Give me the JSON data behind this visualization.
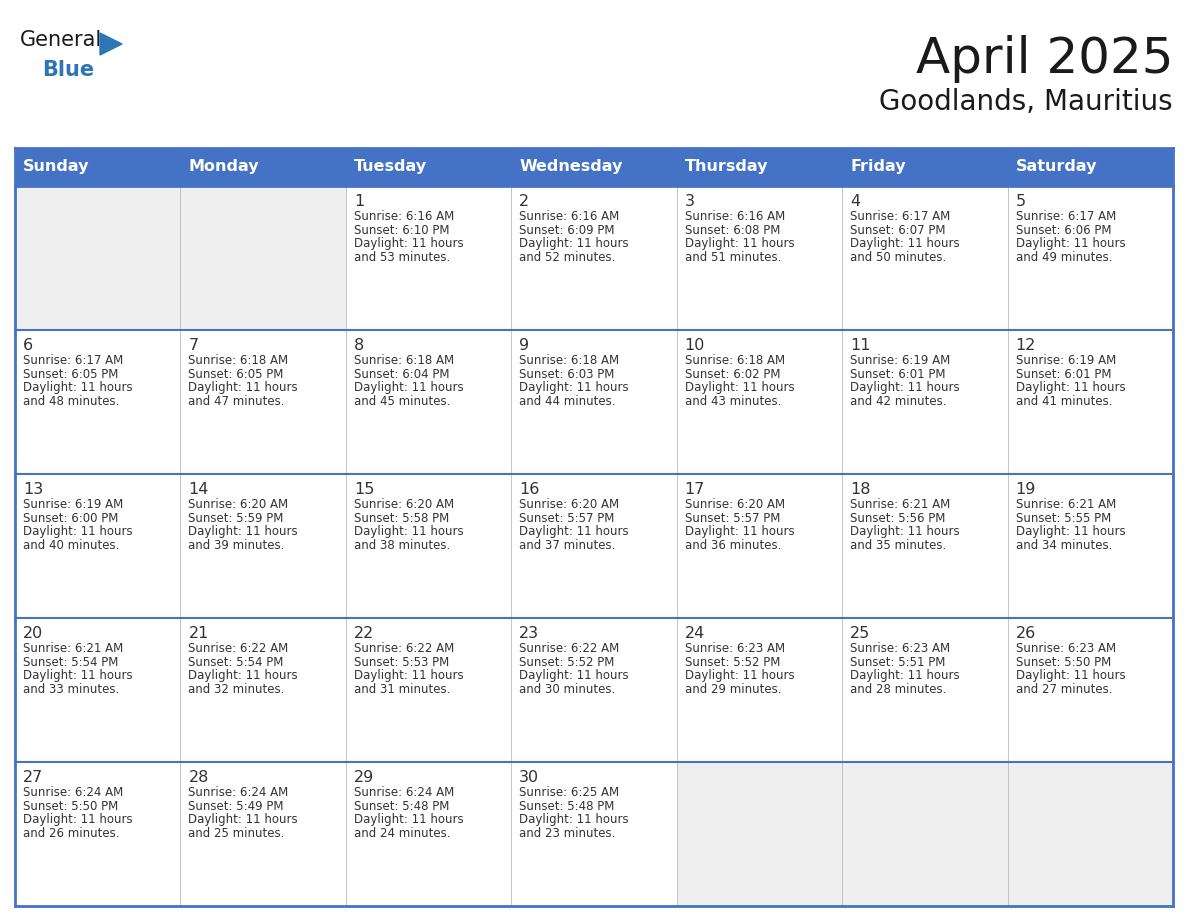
{
  "title": "April 2025",
  "subtitle": "Goodlands, Mauritius",
  "days_of_week": [
    "Sunday",
    "Monday",
    "Tuesday",
    "Wednesday",
    "Thursday",
    "Friday",
    "Saturday"
  ],
  "header_bg": "#4472C4",
  "header_text": "#FFFFFF",
  "cell_bg_light": "#EFEFEF",
  "cell_bg_white": "#FFFFFF",
  "border_color": "#4472C4",
  "row_border_color": "#4472C4",
  "text_color": "#333333",
  "title_color": "#1a1a1a",
  "logo_general_color": "#1a1a1a",
  "logo_blue_color": "#2E75B6",
  "logo_triangle_color": "#2E75B6",
  "calendar_data": [
    [
      {
        "day": "",
        "sunrise": "",
        "sunset": "",
        "daylight_a": "",
        "daylight_b": ""
      },
      {
        "day": "",
        "sunrise": "",
        "sunset": "",
        "daylight_a": "",
        "daylight_b": ""
      },
      {
        "day": "1",
        "sunrise": "Sunrise: 6:16 AM",
        "sunset": "Sunset: 6:10 PM",
        "daylight_a": "Daylight: 11 hours",
        "daylight_b": "and 53 minutes."
      },
      {
        "day": "2",
        "sunrise": "Sunrise: 6:16 AM",
        "sunset": "Sunset: 6:09 PM",
        "daylight_a": "Daylight: 11 hours",
        "daylight_b": "and 52 minutes."
      },
      {
        "day": "3",
        "sunrise": "Sunrise: 6:16 AM",
        "sunset": "Sunset: 6:08 PM",
        "daylight_a": "Daylight: 11 hours",
        "daylight_b": "and 51 minutes."
      },
      {
        "day": "4",
        "sunrise": "Sunrise: 6:17 AM",
        "sunset": "Sunset: 6:07 PM",
        "daylight_a": "Daylight: 11 hours",
        "daylight_b": "and 50 minutes."
      },
      {
        "day": "5",
        "sunrise": "Sunrise: 6:17 AM",
        "sunset": "Sunset: 6:06 PM",
        "daylight_a": "Daylight: 11 hours",
        "daylight_b": "and 49 minutes."
      }
    ],
    [
      {
        "day": "6",
        "sunrise": "Sunrise: 6:17 AM",
        "sunset": "Sunset: 6:05 PM",
        "daylight_a": "Daylight: 11 hours",
        "daylight_b": "and 48 minutes."
      },
      {
        "day": "7",
        "sunrise": "Sunrise: 6:18 AM",
        "sunset": "Sunset: 6:05 PM",
        "daylight_a": "Daylight: 11 hours",
        "daylight_b": "and 47 minutes."
      },
      {
        "day": "8",
        "sunrise": "Sunrise: 6:18 AM",
        "sunset": "Sunset: 6:04 PM",
        "daylight_a": "Daylight: 11 hours",
        "daylight_b": "and 45 minutes."
      },
      {
        "day": "9",
        "sunrise": "Sunrise: 6:18 AM",
        "sunset": "Sunset: 6:03 PM",
        "daylight_a": "Daylight: 11 hours",
        "daylight_b": "and 44 minutes."
      },
      {
        "day": "10",
        "sunrise": "Sunrise: 6:18 AM",
        "sunset": "Sunset: 6:02 PM",
        "daylight_a": "Daylight: 11 hours",
        "daylight_b": "and 43 minutes."
      },
      {
        "day": "11",
        "sunrise": "Sunrise: 6:19 AM",
        "sunset": "Sunset: 6:01 PM",
        "daylight_a": "Daylight: 11 hours",
        "daylight_b": "and 42 minutes."
      },
      {
        "day": "12",
        "sunrise": "Sunrise: 6:19 AM",
        "sunset": "Sunset: 6:01 PM",
        "daylight_a": "Daylight: 11 hours",
        "daylight_b": "and 41 minutes."
      }
    ],
    [
      {
        "day": "13",
        "sunrise": "Sunrise: 6:19 AM",
        "sunset": "Sunset: 6:00 PM",
        "daylight_a": "Daylight: 11 hours",
        "daylight_b": "and 40 minutes."
      },
      {
        "day": "14",
        "sunrise": "Sunrise: 6:20 AM",
        "sunset": "Sunset: 5:59 PM",
        "daylight_a": "Daylight: 11 hours",
        "daylight_b": "and 39 minutes."
      },
      {
        "day": "15",
        "sunrise": "Sunrise: 6:20 AM",
        "sunset": "Sunset: 5:58 PM",
        "daylight_a": "Daylight: 11 hours",
        "daylight_b": "and 38 minutes."
      },
      {
        "day": "16",
        "sunrise": "Sunrise: 6:20 AM",
        "sunset": "Sunset: 5:57 PM",
        "daylight_a": "Daylight: 11 hours",
        "daylight_b": "and 37 minutes."
      },
      {
        "day": "17",
        "sunrise": "Sunrise: 6:20 AM",
        "sunset": "Sunset: 5:57 PM",
        "daylight_a": "Daylight: 11 hours",
        "daylight_b": "and 36 minutes."
      },
      {
        "day": "18",
        "sunrise": "Sunrise: 6:21 AM",
        "sunset": "Sunset: 5:56 PM",
        "daylight_a": "Daylight: 11 hours",
        "daylight_b": "and 35 minutes."
      },
      {
        "day": "19",
        "sunrise": "Sunrise: 6:21 AM",
        "sunset": "Sunset: 5:55 PM",
        "daylight_a": "Daylight: 11 hours",
        "daylight_b": "and 34 minutes."
      }
    ],
    [
      {
        "day": "20",
        "sunrise": "Sunrise: 6:21 AM",
        "sunset": "Sunset: 5:54 PM",
        "daylight_a": "Daylight: 11 hours",
        "daylight_b": "and 33 minutes."
      },
      {
        "day": "21",
        "sunrise": "Sunrise: 6:22 AM",
        "sunset": "Sunset: 5:54 PM",
        "daylight_a": "Daylight: 11 hours",
        "daylight_b": "and 32 minutes."
      },
      {
        "day": "22",
        "sunrise": "Sunrise: 6:22 AM",
        "sunset": "Sunset: 5:53 PM",
        "daylight_a": "Daylight: 11 hours",
        "daylight_b": "and 31 minutes."
      },
      {
        "day": "23",
        "sunrise": "Sunrise: 6:22 AM",
        "sunset": "Sunset: 5:52 PM",
        "daylight_a": "Daylight: 11 hours",
        "daylight_b": "and 30 minutes."
      },
      {
        "day": "24",
        "sunrise": "Sunrise: 6:23 AM",
        "sunset": "Sunset: 5:52 PM",
        "daylight_a": "Daylight: 11 hours",
        "daylight_b": "and 29 minutes."
      },
      {
        "day": "25",
        "sunrise": "Sunrise: 6:23 AM",
        "sunset": "Sunset: 5:51 PM",
        "daylight_a": "Daylight: 11 hours",
        "daylight_b": "and 28 minutes."
      },
      {
        "day": "26",
        "sunrise": "Sunrise: 6:23 AM",
        "sunset": "Sunset: 5:50 PM",
        "daylight_a": "Daylight: 11 hours",
        "daylight_b": "and 27 minutes."
      }
    ],
    [
      {
        "day": "27",
        "sunrise": "Sunrise: 6:24 AM",
        "sunset": "Sunset: 5:50 PM",
        "daylight_a": "Daylight: 11 hours",
        "daylight_b": "and 26 minutes."
      },
      {
        "day": "28",
        "sunrise": "Sunrise: 6:24 AM",
        "sunset": "Sunset: 5:49 PM",
        "daylight_a": "Daylight: 11 hours",
        "daylight_b": "and 25 minutes."
      },
      {
        "day": "29",
        "sunrise": "Sunrise: 6:24 AM",
        "sunset": "Sunset: 5:48 PM",
        "daylight_a": "Daylight: 11 hours",
        "daylight_b": "and 24 minutes."
      },
      {
        "day": "30",
        "sunrise": "Sunrise: 6:25 AM",
        "sunset": "Sunset: 5:48 PM",
        "daylight_a": "Daylight: 11 hours",
        "daylight_b": "and 23 minutes."
      },
      {
        "day": "",
        "sunrise": "",
        "sunset": "",
        "daylight_a": "",
        "daylight_b": ""
      },
      {
        "day": "",
        "sunrise": "",
        "sunset": "",
        "daylight_a": "",
        "daylight_b": ""
      },
      {
        "day": "",
        "sunrise": "",
        "sunset": "",
        "daylight_a": "",
        "daylight_b": ""
      }
    ]
  ]
}
